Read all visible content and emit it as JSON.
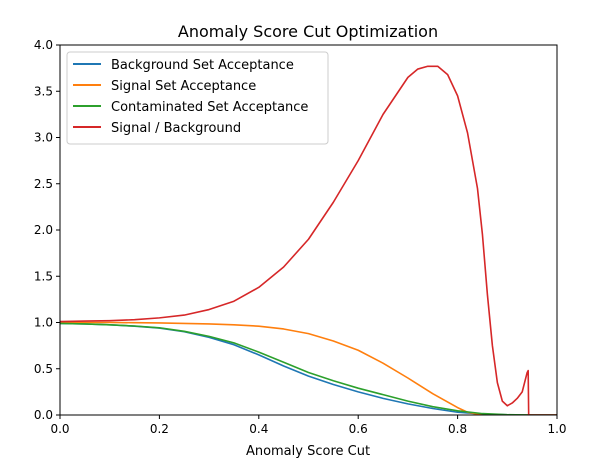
{
  "chart_data": {
    "type": "line",
    "title": "Anomaly Score Cut Optimization",
    "xlabel": "Anomaly Score Cut",
    "ylabel": "",
    "xlim": [
      0.0,
      1.0
    ],
    "ylim": [
      0.0,
      4.0
    ],
    "xticks": [
      "0.0",
      "0.2",
      "0.4",
      "0.6",
      "0.8",
      "1.0"
    ],
    "yticks": [
      "0.0",
      "0.5",
      "1.0",
      "1.5",
      "2.0",
      "2.5",
      "3.0",
      "3.5",
      "4.0"
    ],
    "grid": false,
    "legend": "top-left",
    "series": [
      {
        "name": "Background Set Acceptance",
        "color": "#1f77b4",
        "x": [
          0.0,
          0.05,
          0.1,
          0.15,
          0.2,
          0.25,
          0.3,
          0.35,
          0.4,
          0.45,
          0.5,
          0.55,
          0.6,
          0.65,
          0.7,
          0.75,
          0.8,
          0.85,
          0.9,
          0.95,
          1.0
        ],
        "y": [
          0.99,
          0.985,
          0.975,
          0.96,
          0.94,
          0.9,
          0.84,
          0.76,
          0.65,
          0.53,
          0.42,
          0.33,
          0.25,
          0.18,
          0.12,
          0.07,
          0.03,
          0.01,
          0.002,
          0.0,
          0.0
        ]
      },
      {
        "name": "Signal Set Acceptance",
        "color": "#ff7f0e",
        "x": [
          0.0,
          0.05,
          0.1,
          0.15,
          0.2,
          0.25,
          0.3,
          0.35,
          0.4,
          0.45,
          0.5,
          0.55,
          0.6,
          0.65,
          0.7,
          0.75,
          0.8,
          0.82,
          0.85,
          0.9,
          0.95,
          1.0
        ],
        "y": [
          1.0,
          1.0,
          1.0,
          0.998,
          0.995,
          0.99,
          0.985,
          0.975,
          0.96,
          0.93,
          0.88,
          0.8,
          0.7,
          0.56,
          0.4,
          0.23,
          0.08,
          0.03,
          0.0,
          0.0,
          0.0,
          0.0
        ]
      },
      {
        "name": "Contaminated Set Acceptance",
        "color": "#2ca02c",
        "x": [
          0.0,
          0.05,
          0.1,
          0.15,
          0.2,
          0.25,
          0.3,
          0.35,
          0.4,
          0.45,
          0.5,
          0.55,
          0.6,
          0.65,
          0.7,
          0.75,
          0.8,
          0.85,
          0.9,
          0.95,
          1.0
        ],
        "y": [
          0.99,
          0.985,
          0.975,
          0.962,
          0.943,
          0.905,
          0.85,
          0.78,
          0.68,
          0.57,
          0.46,
          0.37,
          0.29,
          0.22,
          0.15,
          0.09,
          0.045,
          0.015,
          0.003,
          0.0,
          0.0
        ]
      },
      {
        "name": "Signal / Background",
        "color": "#d62728",
        "x": [
          0.0,
          0.05,
          0.1,
          0.15,
          0.2,
          0.25,
          0.3,
          0.35,
          0.4,
          0.45,
          0.5,
          0.55,
          0.6,
          0.65,
          0.7,
          0.72,
          0.74,
          0.76,
          0.78,
          0.8,
          0.82,
          0.84,
          0.85,
          0.86,
          0.87,
          0.88,
          0.89,
          0.9,
          0.91,
          0.92,
          0.93,
          0.94,
          0.942,
          0.943,
          1.0
        ],
        "y": [
          1.01,
          1.015,
          1.02,
          1.03,
          1.05,
          1.08,
          1.14,
          1.23,
          1.38,
          1.6,
          1.9,
          2.3,
          2.75,
          3.25,
          3.65,
          3.74,
          3.77,
          3.77,
          3.68,
          3.45,
          3.05,
          2.45,
          1.95,
          1.3,
          0.75,
          0.35,
          0.15,
          0.1,
          0.13,
          0.18,
          0.25,
          0.46,
          0.48,
          0.0,
          0.0
        ]
      }
    ]
  }
}
